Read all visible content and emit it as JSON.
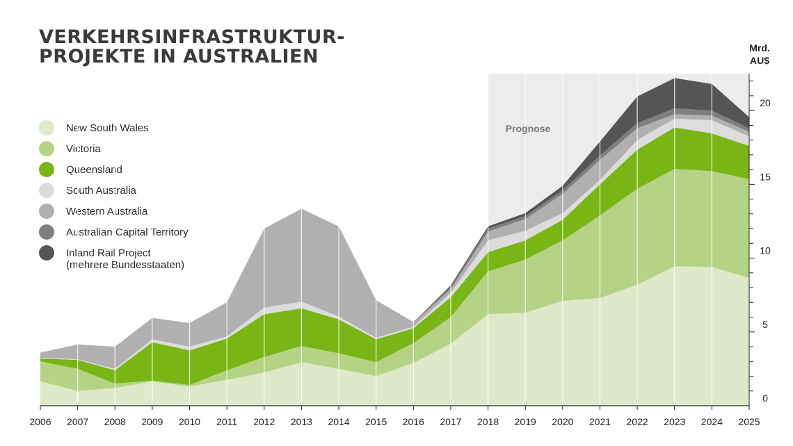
{
  "title_line1": "VERKEHRSINFRASTRUKTUR-",
  "title_line2": "PROJEKTE IN AUSTRALIEN",
  "unit_line1": "Mrd.",
  "unit_line2": "AU$",
  "forecast_label": "Prognose",
  "legend": [
    {
      "label": "New South Wales",
      "color": "#dde9c8"
    },
    {
      "label": "Victoria",
      "color": "#b5d384"
    },
    {
      "label": "Queensland",
      "color": "#79b515"
    },
    {
      "label": "South Australia",
      "color": "#dcdcdc"
    },
    {
      "label": "Western Australia",
      "color": "#b0b0b0"
    },
    {
      "label": "Australian Capital Territory",
      "color": "#7f7f7f"
    },
    {
      "label": "Inland Rail Project",
      "label_line2": "(mehrere Bundesstaaten)",
      "color": "#555555"
    }
  ],
  "chart_data": {
    "type": "area",
    "stacked": true,
    "x": [
      2006,
      2007,
      2008,
      2009,
      2010,
      2011,
      2012,
      2013,
      2014,
      2015,
      2016,
      2017,
      2018,
      2019,
      2020,
      2021,
      2022,
      2023,
      2024,
      2025
    ],
    "forecast_range": [
      2018,
      2025
    ],
    "ylim": [
      0,
      22.5
    ],
    "yticks": [
      0,
      5,
      10,
      15,
      20
    ],
    "y_minor_step": 1,
    "ylabel": "Mrd. AU$",
    "y_axis_position": "right",
    "grid": "vertical",
    "legend_position": "left",
    "series": [
      {
        "name": "New South Wales",
        "color": "#dde9c8",
        "values": [
          1.65,
          1.0,
          1.2,
          1.65,
          1.3,
          1.75,
          2.25,
          2.95,
          2.5,
          2.0,
          2.9,
          4.2,
          6.2,
          6.3,
          7.1,
          7.3,
          8.2,
          9.45,
          9.4,
          8.65
        ]
      },
      {
        "name": "Victoria",
        "color": "#b5d384",
        "values": [
          1.35,
          1.5,
          0.3,
          0.05,
          0.1,
          0.65,
          1.05,
          1.1,
          1.05,
          0.95,
          1.35,
          1.8,
          2.9,
          3.6,
          4.1,
          5.6,
          6.5,
          6.6,
          6.5,
          6.7
        ]
      },
      {
        "name": "Queensland",
        "color": "#79b515",
        "values": [
          0.2,
          0.6,
          0.9,
          2.6,
          2.35,
          2.15,
          2.9,
          2.55,
          2.3,
          1.55,
          1.0,
          1.35,
          1.3,
          1.3,
          1.4,
          2.1,
          2.65,
          2.8,
          2.55,
          2.25
        ]
      },
      {
        "name": "South Australia",
        "color": "#dcdcdc",
        "values": [
          0.05,
          0.05,
          0.1,
          0.2,
          0.25,
          0.15,
          0.45,
          0.45,
          0.2,
          0.1,
          0.1,
          0.3,
          0.8,
          0.65,
          0.45,
          0.3,
          0.65,
          0.6,
          0.9,
          0.65
        ]
      },
      {
        "name": "Western Australia",
        "color": "#b0b0b0",
        "values": [
          0.35,
          1.0,
          1.5,
          1.45,
          1.6,
          2.3,
          5.35,
          6.3,
          6.1,
          2.55,
          0.25,
          0.25,
          0.6,
          0.8,
          1.3,
          1.35,
          0.8,
          0.3,
          0.3,
          0.3
        ]
      },
      {
        "name": "Australian Capital Territory",
        "color": "#7f7f7f",
        "values": [
          0,
          0,
          0,
          0,
          0,
          0,
          0,
          0,
          0,
          0,
          0.05,
          0.15,
          0.2,
          0.2,
          0.25,
          0.3,
          0.35,
          0.4,
          0.35,
          0.25
        ]
      },
      {
        "name": "Inland Rail Project (mehrere Bundesstaaten)",
        "color": "#555555",
        "values": [
          0,
          0,
          0,
          0,
          0,
          0,
          0,
          0,
          0,
          0,
          0,
          0.1,
          0.15,
          0.2,
          0.3,
          0.95,
          1.8,
          2.05,
          1.8,
          0.75
        ]
      }
    ]
  }
}
